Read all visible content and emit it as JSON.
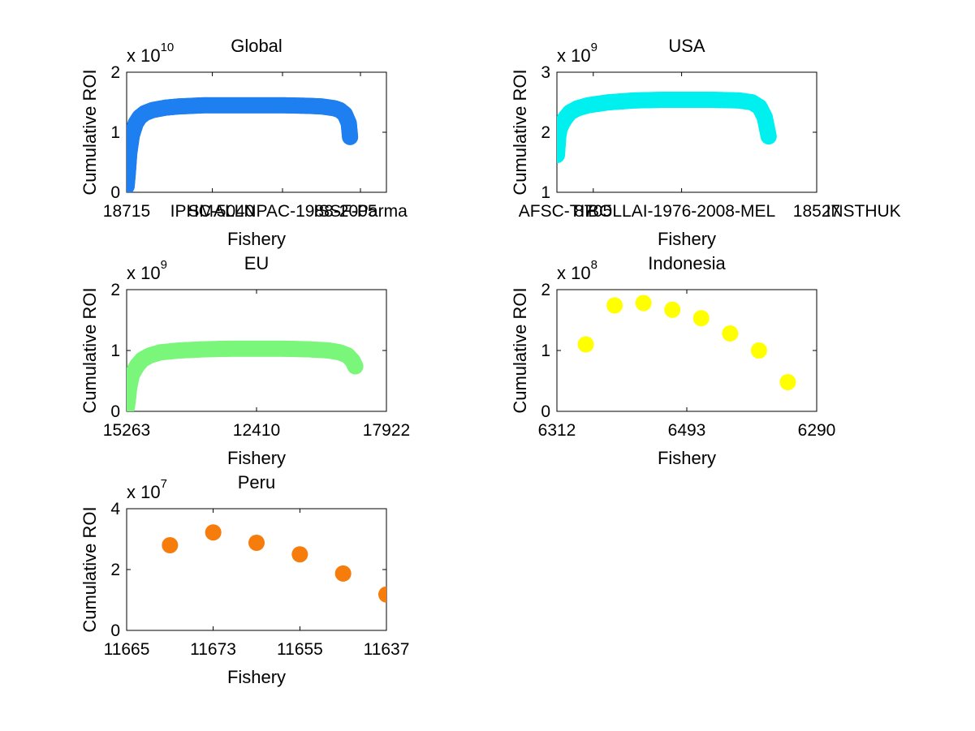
{
  "chart_data": [
    {
      "type": "scatter",
      "title": "Global",
      "xlabel": "Fishery",
      "ylabel": "Cumulative ROI",
      "y_multiplier": {
        "base": "x 10",
        "exponent": "10"
      },
      "ylim": [
        0,
        2
      ],
      "yticks": [
        "0",
        "1",
        "2"
      ],
      "xticks": [
        "18715",
        "IPHC-5040",
        "SMALLNPAC-1988-2005",
        "ISSF-Parma"
      ],
      "color": "#1e7ff0",
      "style": "dense",
      "x": [
        0,
        0.005,
        0.01,
        0.02,
        0.035,
        0.05,
        0.07,
        0.1,
        0.15,
        0.2,
        0.3,
        0.4,
        0.5,
        0.6,
        0.7,
        0.75,
        0.8,
        0.82,
        0.84,
        0.855,
        0.86
      ],
      "y": [
        0.1,
        0.35,
        0.65,
        0.95,
        1.15,
        1.25,
        1.32,
        1.37,
        1.41,
        1.43,
        1.45,
        1.45,
        1.45,
        1.45,
        1.44,
        1.43,
        1.4,
        1.37,
        1.3,
        1.15,
        0.92
      ]
    },
    {
      "type": "scatter",
      "title": "USA",
      "xlabel": "Fishery",
      "ylabel": "Cumulative ROI",
      "y_multiplier": {
        "base": "x 10",
        "exponent": "9"
      },
      "ylim": [
        1,
        3
      ],
      "yticks": [
        "1",
        "2",
        "3"
      ],
      "xticks": [
        "AFSC-TIF",
        "8705",
        "BOLLAI-1976-2008-MEL",
        "18527",
        "INSTHUK"
      ],
      "color": "#00f0f0",
      "style": "dense",
      "x": [
        0,
        0.005,
        0.01,
        0.02,
        0.035,
        0.05,
        0.08,
        0.12,
        0.2,
        0.3,
        0.4,
        0.5,
        0.6,
        0.7,
        0.75,
        0.78,
        0.8,
        0.815
      ],
      "y": [
        1.62,
        1.92,
        2.05,
        2.15,
        2.25,
        2.33,
        2.4,
        2.45,
        2.5,
        2.53,
        2.54,
        2.54,
        2.54,
        2.53,
        2.5,
        2.42,
        2.25,
        1.93
      ]
    },
    {
      "type": "scatter",
      "title": "EU",
      "xlabel": "Fishery",
      "ylabel": "Cumulative ROI",
      "y_multiplier": {
        "base": "x 10",
        "exponent": "9"
      },
      "ylim": [
        0,
        2
      ],
      "yticks": [
        "0",
        "1",
        "2"
      ],
      "xticks": [
        "15263",
        "12410",
        "17922"
      ],
      "color": "#7af77a",
      "style": "dense",
      "x": [
        0,
        0.005,
        0.01,
        0.02,
        0.04,
        0.06,
        0.09,
        0.13,
        0.2,
        0.3,
        0.4,
        0.5,
        0.6,
        0.7,
        0.78,
        0.82,
        0.85,
        0.87,
        0.88
      ],
      "y": [
        0.05,
        0.2,
        0.4,
        0.6,
        0.75,
        0.85,
        0.92,
        0.97,
        1.0,
        1.02,
        1.03,
        1.03,
        1.03,
        1.02,
        1.0,
        0.97,
        0.92,
        0.83,
        0.74
      ]
    },
    {
      "type": "scatter",
      "title": "Indonesia",
      "xlabel": "Fishery",
      "ylabel": "Cumulative ROI",
      "y_multiplier": {
        "base": "x 10",
        "exponent": "8"
      },
      "ylim": [
        0,
        2
      ],
      "yticks": [
        "0",
        "1",
        "2"
      ],
      "xticks": [
        "6312",
        "6493",
        "6290"
      ],
      "color": "#ffff00",
      "style": "points",
      "x": [
        1,
        2,
        3,
        4,
        5,
        6,
        7,
        8
      ],
      "xlim": [
        0,
        9
      ],
      "y": [
        1.1,
        1.74,
        1.78,
        1.67,
        1.53,
        1.28,
        1.0,
        0.48
      ]
    },
    {
      "type": "scatter",
      "title": "Peru",
      "xlabel": "Fishery",
      "ylabel": "Cumulative ROI",
      "y_multiplier": {
        "base": "x 10",
        "exponent": "7"
      },
      "ylim": [
        0,
        4
      ],
      "yticks": [
        "0",
        "2",
        "4"
      ],
      "xticks": [
        "11665",
        "11673",
        "11655",
        "11637"
      ],
      "color": "#f67c0b",
      "style": "points",
      "x": [
        1,
        2,
        3,
        4,
        5,
        6
      ],
      "xlim": [
        0,
        6
      ],
      "y": [
        2.8,
        3.22,
        2.88,
        2.5,
        1.87,
        1.18
      ]
    }
  ]
}
